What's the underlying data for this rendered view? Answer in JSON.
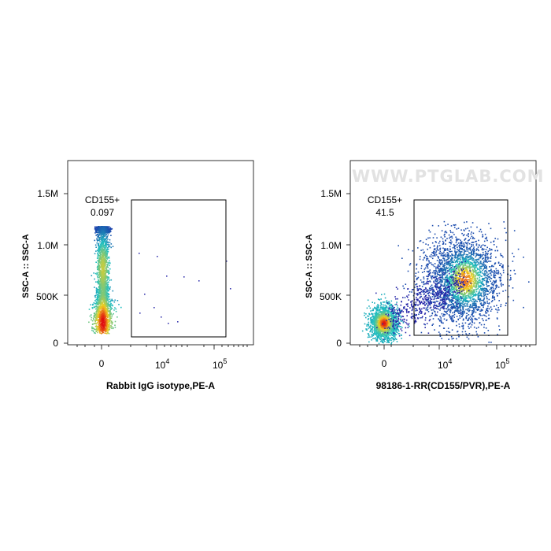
{
  "watermark": "WWW.PTGLAB.COM",
  "chart_data": [
    {
      "type": "scatter",
      "title": "",
      "xlabel": "Rabbit IgG isotype,PE-A",
      "ylabel": "SSC-A :: SSC-A",
      "x_scale": "biexponential",
      "x_ticks": [
        "0",
        "10^4",
        "10^5"
      ],
      "y_ticks": [
        "0",
        "500K",
        "1.0M",
        "1.5M"
      ],
      "ylim": [
        0,
        1800000
      ],
      "gate": {
        "name": "CD155+",
        "percent": "0.097"
      },
      "populations": [
        {
          "name": "main",
          "x_center": 0,
          "y_center": 650000,
          "density": "high"
        }
      ]
    },
    {
      "type": "scatter",
      "title": "",
      "xlabel": "98186-1-RR(CD155/PVR),PE-A",
      "ylabel": "SSC-A :: SSC-A",
      "x_scale": "biexponential",
      "x_ticks": [
        "0",
        "10^4",
        "10^5"
      ],
      "y_ticks": [
        "0",
        "500K",
        "1.0M",
        "1.5M"
      ],
      "ylim": [
        0,
        1800000
      ],
      "gate": {
        "name": "CD155+",
        "percent": "41.5"
      },
      "populations": [
        {
          "name": "negative",
          "x_center": 0,
          "y_center": 200000,
          "density": "high"
        },
        {
          "name": "positive",
          "x_center": 20000,
          "y_center": 650000,
          "density": "high"
        }
      ]
    }
  ],
  "colors": {
    "low": "#1a1aa6",
    "mid": "#20c0c0",
    "high": "#f0d020",
    "peak": "#e01010"
  }
}
